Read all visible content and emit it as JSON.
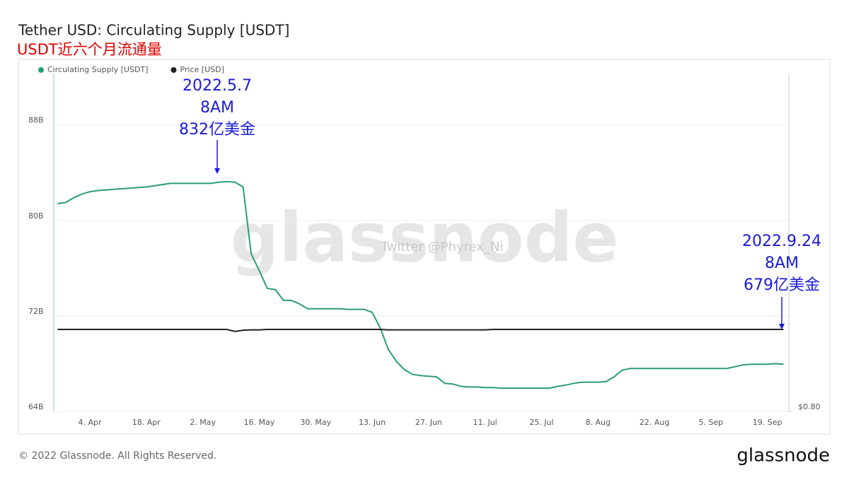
{
  "chart_data": {
    "type": "line",
    "title": "Tether USD: Circulating Supply [USDT]",
    "subtitle": "USDT近六个月流通量",
    "watermark": "glassnode",
    "credit": "Twitter @Phyrex_Ni",
    "footer": "© 2022 Glassnode. All Rights Reserved.",
    "logo": "glassnode",
    "annotations": [
      {
        "lines": [
          "2022.5.7",
          "8AM",
          "832亿美金"
        ]
      },
      {
        "lines": [
          "2022.9.24",
          "8AM",
          "679亿美金"
        ]
      }
    ],
    "categories": [
      null,
      null,
      null,
      null,
      "4. Apr",
      null,
      null,
      null,
      null,
      null,
      null,
      "18. Apr",
      null,
      null,
      null,
      null,
      null,
      null,
      "2. May",
      null,
      null,
      null,
      null,
      null,
      null,
      "16. May",
      null,
      null,
      null,
      null,
      null,
      null,
      "30. May",
      null,
      null,
      null,
      null,
      null,
      null,
      "13. Jun",
      null,
      null,
      null,
      null,
      null,
      null,
      "27. Jun",
      null,
      null,
      null,
      null,
      null,
      null,
      "11. Jul",
      null,
      null,
      null,
      null,
      null,
      null,
      "25. Jul",
      null,
      null,
      null,
      null,
      null,
      null,
      "8. Aug",
      null,
      null,
      null,
      null,
      null,
      null,
      "22. Aug",
      null,
      null,
      null,
      null,
      null,
      null,
      "5. Sep",
      null,
      null,
      null,
      null,
      null,
      null,
      "19. Sep",
      null,
      null
    ],
    "series": [
      {
        "name": "Circulating Supply [USDT]",
        "color": "#2a9d74",
        "values": [
          81.4,
          81.5,
          81.9,
          82.2,
          82.4,
          82.5,
          82.55,
          82.6,
          82.65,
          82.7,
          82.75,
          82.8,
          82.9,
          83.0,
          83.1,
          83.1,
          83.1,
          83.1,
          83.1,
          83.1,
          83.2,
          83.25,
          83.2,
          82.8,
          77.2,
          75.8,
          74.3,
          74.2,
          73.3,
          73.3,
          73.0,
          72.6,
          72.6,
          72.6,
          72.6,
          72.6,
          72.55,
          72.55,
          72.55,
          72.3,
          71.0,
          69.2,
          68.2,
          67.5,
          67.1,
          67.0,
          66.95,
          66.9,
          66.35,
          66.3,
          66.1,
          66.05,
          66.05,
          66.0,
          66.0,
          65.95,
          65.95,
          65.95,
          65.95,
          65.95,
          65.95,
          65.95,
          66.1,
          66.2,
          66.35,
          66.45,
          66.45,
          66.45,
          66.5,
          66.9,
          67.45,
          67.6,
          67.6,
          67.6,
          67.6,
          67.6,
          67.6,
          67.6,
          67.6,
          67.6,
          67.6,
          67.6,
          67.6,
          67.6,
          67.75,
          67.9,
          67.95,
          67.95,
          67.95,
          68.0,
          67.95
        ]
      },
      {
        "name": "Price [USD]",
        "color": "#222222",
        "axis": "y2",
        "values": [
          1.0,
          1.0,
          1.0,
          1.0,
          1.0,
          1.0,
          1.0,
          1.0,
          1.0,
          1.0,
          1.0,
          1.0,
          1.0,
          1.0,
          1.0,
          1.0,
          1.0,
          1.0,
          1.0,
          1.0,
          1.0,
          1.0,
          0.995,
          0.998,
          0.999,
          0.999,
          1.0,
          1.0,
          1.0,
          1.0,
          1.0,
          1.0,
          1.0,
          1.0,
          1.0,
          1.0,
          1.0,
          1.0,
          1.0,
          1.0,
          1.0,
          0.999,
          0.999,
          0.999,
          0.999,
          0.999,
          0.999,
          0.999,
          0.999,
          0.999,
          0.999,
          0.999,
          0.999,
          0.999,
          1.0,
          1.0,
          1.0,
          1.0,
          1.0,
          1.0,
          1.0,
          1.0,
          1.0,
          1.0,
          1.0,
          1.0,
          1.0,
          1.0,
          1.0,
          1.0,
          1.0,
          1.0,
          1.0,
          1.0,
          1.0,
          1.0,
          1.0,
          1.0,
          1.0,
          1.0,
          1.0,
          1.0,
          1.0,
          1.0,
          1.0,
          1.0,
          1.0,
          1.0,
          1.0,
          1.0,
          1.0
        ]
      }
    ],
    "ylim": [
      64,
      92.3
    ],
    "yticks": [
      {
        "value": 64,
        "label": "64B"
      },
      {
        "value": 72,
        "label": "72B"
      },
      {
        "value": 80,
        "label": "80B"
      },
      {
        "value": 88,
        "label": "88B"
      }
    ],
    "y2lim": [
      0.8,
      1.624
    ],
    "y2ticks": [
      {
        "value": 0.8,
        "label": "$0.80"
      }
    ],
    "grid": true,
    "legend": "top-left"
  }
}
